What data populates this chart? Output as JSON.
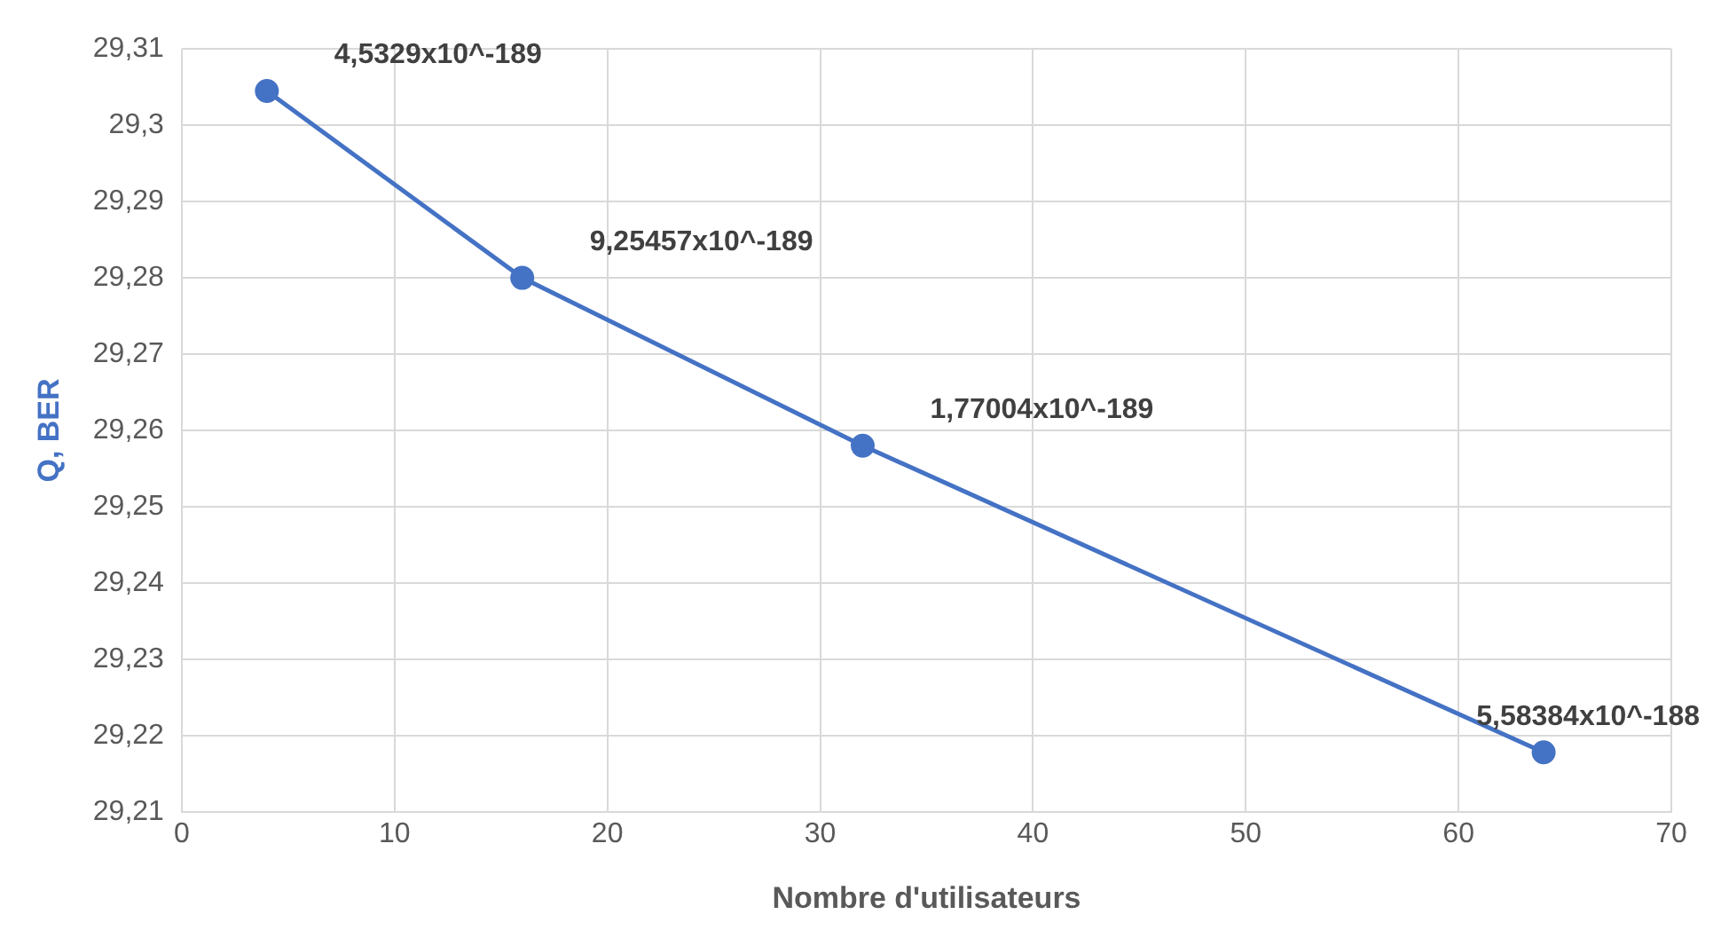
{
  "chart_data": {
    "type": "line",
    "xlabel": "Nombre d'utilisateurs",
    "ylabel": "Q, BER",
    "x": [
      4,
      16,
      32,
      64
    ],
    "series": [
      {
        "color": "#4472c4",
        "values": [
          29.3045,
          29.28,
          29.258,
          29.2178
        ]
      }
    ],
    "annotations": [
      {
        "text": "4,5329x10^-189",
        "x": 4,
        "y": 29.3045
      },
      {
        "text": "9,25457x10^-189",
        "x": 16,
        "y": 29.28
      },
      {
        "text": "1,77004x10^-189",
        "x": 32,
        "y": 29.258
      },
      {
        "text": "5,58384x10^-188",
        "x": 64,
        "y": 29.2178
      }
    ],
    "xlim": [
      0,
      70
    ],
    "xticks": [
      0,
      10,
      20,
      30,
      40,
      50,
      60,
      70
    ],
    "ylim": [
      29.21,
      29.31
    ],
    "yticks": [
      {
        "value": 29.21,
        "label": "29,21"
      },
      {
        "value": 29.22,
        "label": "29,22"
      },
      {
        "value": 29.23,
        "label": "29,23"
      },
      {
        "value": 29.24,
        "label": "29,24"
      },
      {
        "value": 29.25,
        "label": "29,25"
      },
      {
        "value": 29.26,
        "label": "29,26"
      },
      {
        "value": 29.27,
        "label": "29,27"
      },
      {
        "value": 29.28,
        "label": "29,28"
      },
      {
        "value": 29.29,
        "label": "29,29"
      },
      {
        "value": 29.3,
        "label": "29,3"
      },
      {
        "value": 29.31,
        "label": "29,31"
      }
    ],
    "grid": true,
    "marker": "circle",
    "line_style": "solid",
    "legend": false
  }
}
